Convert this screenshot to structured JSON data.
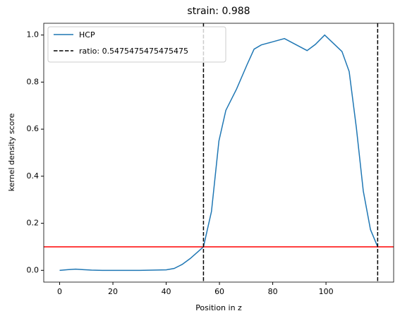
{
  "chart_data": {
    "type": "line",
    "title": "strain: 0.988",
    "xlabel": "Position in z",
    "ylabel": "kernel density score",
    "xlim": [
      -5.97,
      125.4
    ],
    "ylim": [
      -0.05,
      1.05
    ],
    "xticks": [
      0,
      20,
      40,
      60,
      80,
      100
    ],
    "yticks": [
      {
        "value": 0,
        "label": "0.0"
      },
      {
        "value": 0.2,
        "label": "0.2"
      },
      {
        "value": 0.4,
        "label": "0.4"
      },
      {
        "value": 0.6,
        "label": "0.6"
      },
      {
        "value": 0.8,
        "label": "0.8"
      },
      {
        "value": 1,
        "label": "1.0"
      }
    ],
    "legend": "upper left",
    "series": [
      {
        "name": "HCP",
        "color": "#1f77b4",
        "x": [
          0,
          3,
          6,
          9,
          12,
          16,
          20,
          30,
          40,
          43,
          46,
          49,
          52,
          54,
          57,
          59.8,
          62.4,
          66.4,
          70.4,
          73,
          75.7,
          79.6,
          84.4,
          88.9,
          92.9,
          96,
          99.5,
          103.4,
          106,
          108.7,
          111.4,
          114,
          116.7,
          119.4
        ],
        "values": [
          0,
          0.003,
          0.005,
          0.003,
          0.001,
          0,
          0,
          0,
          0.002,
          0.008,
          0.025,
          0.05,
          0.08,
          0.1,
          0.25,
          0.55,
          0.68,
          0.77,
          0.875,
          0.94,
          0.958,
          0.97,
          0.985,
          0.958,
          0.934,
          0.96,
          1.0,
          0.958,
          0.93,
          0.845,
          0.606,
          0.337,
          0.173,
          0.1
        ]
      }
    ],
    "vlines": {
      "name": "ratio: 0.5475475475475475",
      "color": "#000000",
      "values": [
        54,
        119.4
      ]
    },
    "hline": {
      "value": 0.1,
      "color": "#ff0000"
    }
  }
}
